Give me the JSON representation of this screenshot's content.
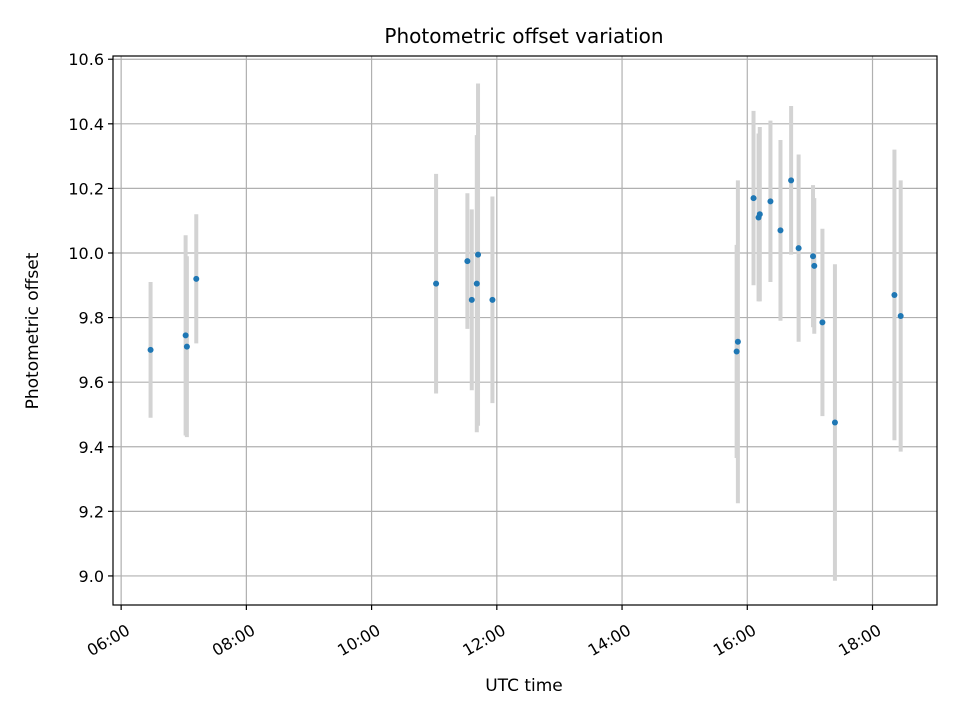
{
  "chart_data": {
    "type": "scatter",
    "title": "Photometric offset variation",
    "xlabel": "UTC time",
    "ylabel": "Photometric offset",
    "x_unit": "hours (UTC time of day)",
    "xlim": [
      5.87,
      19.03
    ],
    "ylim": [
      8.91,
      10.61
    ],
    "xticks": [
      {
        "value": 6,
        "label": "06:00"
      },
      {
        "value": 8,
        "label": "08:00"
      },
      {
        "value": 10,
        "label": "10:00"
      },
      {
        "value": 12,
        "label": "12:00"
      },
      {
        "value": 14,
        "label": "14:00"
      },
      {
        "value": 16,
        "label": "16:00"
      },
      {
        "value": 18,
        "label": "18:00"
      }
    ],
    "yticks": [
      {
        "value": 9.0,
        "label": "9.0"
      },
      {
        "value": 9.2,
        "label": "9.2"
      },
      {
        "value": 9.4,
        "label": "9.4"
      },
      {
        "value": 9.6,
        "label": "9.6"
      },
      {
        "value": 9.8,
        "label": "9.8"
      },
      {
        "value": 10.0,
        "label": "10.0"
      },
      {
        "value": 10.2,
        "label": "10.2"
      },
      {
        "value": 10.4,
        "label": "10.4"
      },
      {
        "value": 10.6,
        "label": "10.6"
      }
    ],
    "grid": true,
    "colors": {
      "point": "#1f77b4",
      "errorbar": "#d3d3d3",
      "grid": "#b0b0b0"
    },
    "points": [
      {
        "x": 6.47,
        "y": 9.7,
        "err": 0.21
      },
      {
        "x": 7.03,
        "y": 9.745,
        "err": 0.31
      },
      {
        "x": 7.05,
        "y": 9.71,
        "err": 0.28
      },
      {
        "x": 7.2,
        "y": 9.92,
        "err": 0.2
      },
      {
        "x": 11.03,
        "y": 9.905,
        "err": 0.34
      },
      {
        "x": 11.53,
        "y": 9.975,
        "err": 0.21
      },
      {
        "x": 11.6,
        "y": 9.855,
        "err": 0.28
      },
      {
        "x": 11.68,
        "y": 9.905,
        "err": 0.46
      },
      {
        "x": 11.7,
        "y": 9.995,
        "err": 0.53
      },
      {
        "x": 11.93,
        "y": 9.855,
        "err": 0.32
      },
      {
        "x": 15.83,
        "y": 9.695,
        "err": 0.33
      },
      {
        "x": 15.85,
        "y": 9.725,
        "err": 0.5
      },
      {
        "x": 16.1,
        "y": 10.17,
        "err": 0.27
      },
      {
        "x": 16.18,
        "y": 10.11,
        "err": 0.26
      },
      {
        "x": 16.2,
        "y": 10.12,
        "err": 0.27
      },
      {
        "x": 16.37,
        "y": 10.16,
        "err": 0.25
      },
      {
        "x": 16.53,
        "y": 10.07,
        "err": 0.28
      },
      {
        "x": 16.7,
        "y": 10.225,
        "err": 0.23
      },
      {
        "x": 16.82,
        "y": 10.015,
        "err": 0.29
      },
      {
        "x": 17.05,
        "y": 9.99,
        "err": 0.22
      },
      {
        "x": 17.07,
        "y": 9.96,
        "err": 0.21
      },
      {
        "x": 17.2,
        "y": 9.785,
        "err": 0.29
      },
      {
        "x": 17.4,
        "y": 9.475,
        "err": 0.49
      },
      {
        "x": 18.35,
        "y": 9.87,
        "err": 0.45
      },
      {
        "x": 18.45,
        "y": 9.805,
        "err": 0.42
      }
    ]
  }
}
